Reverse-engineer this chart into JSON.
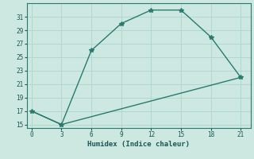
{
  "line1_x": [
    0,
    3,
    6,
    9,
    12,
    15,
    18,
    21
  ],
  "line1_y": [
    17,
    15,
    26,
    30,
    32,
    32,
    28,
    22
  ],
  "line2_x": [
    0,
    3,
    21
  ],
  "line2_y": [
    17,
    15,
    22
  ],
  "color": "#2a7a6e",
  "bg_color": "#cce8e0",
  "grid_color": "#b0d8d0",
  "xlabel": "Humidex (Indice chaleur)",
  "xlim": [
    -0.5,
    22
  ],
  "ylim": [
    14.5,
    33
  ],
  "xticks": [
    0,
    3,
    6,
    9,
    12,
    15,
    18,
    21
  ],
  "yticks": [
    15,
    17,
    19,
    21,
    23,
    25,
    27,
    29,
    31
  ],
  "marker": "*",
  "markersize": 4,
  "linewidth": 1.0
}
